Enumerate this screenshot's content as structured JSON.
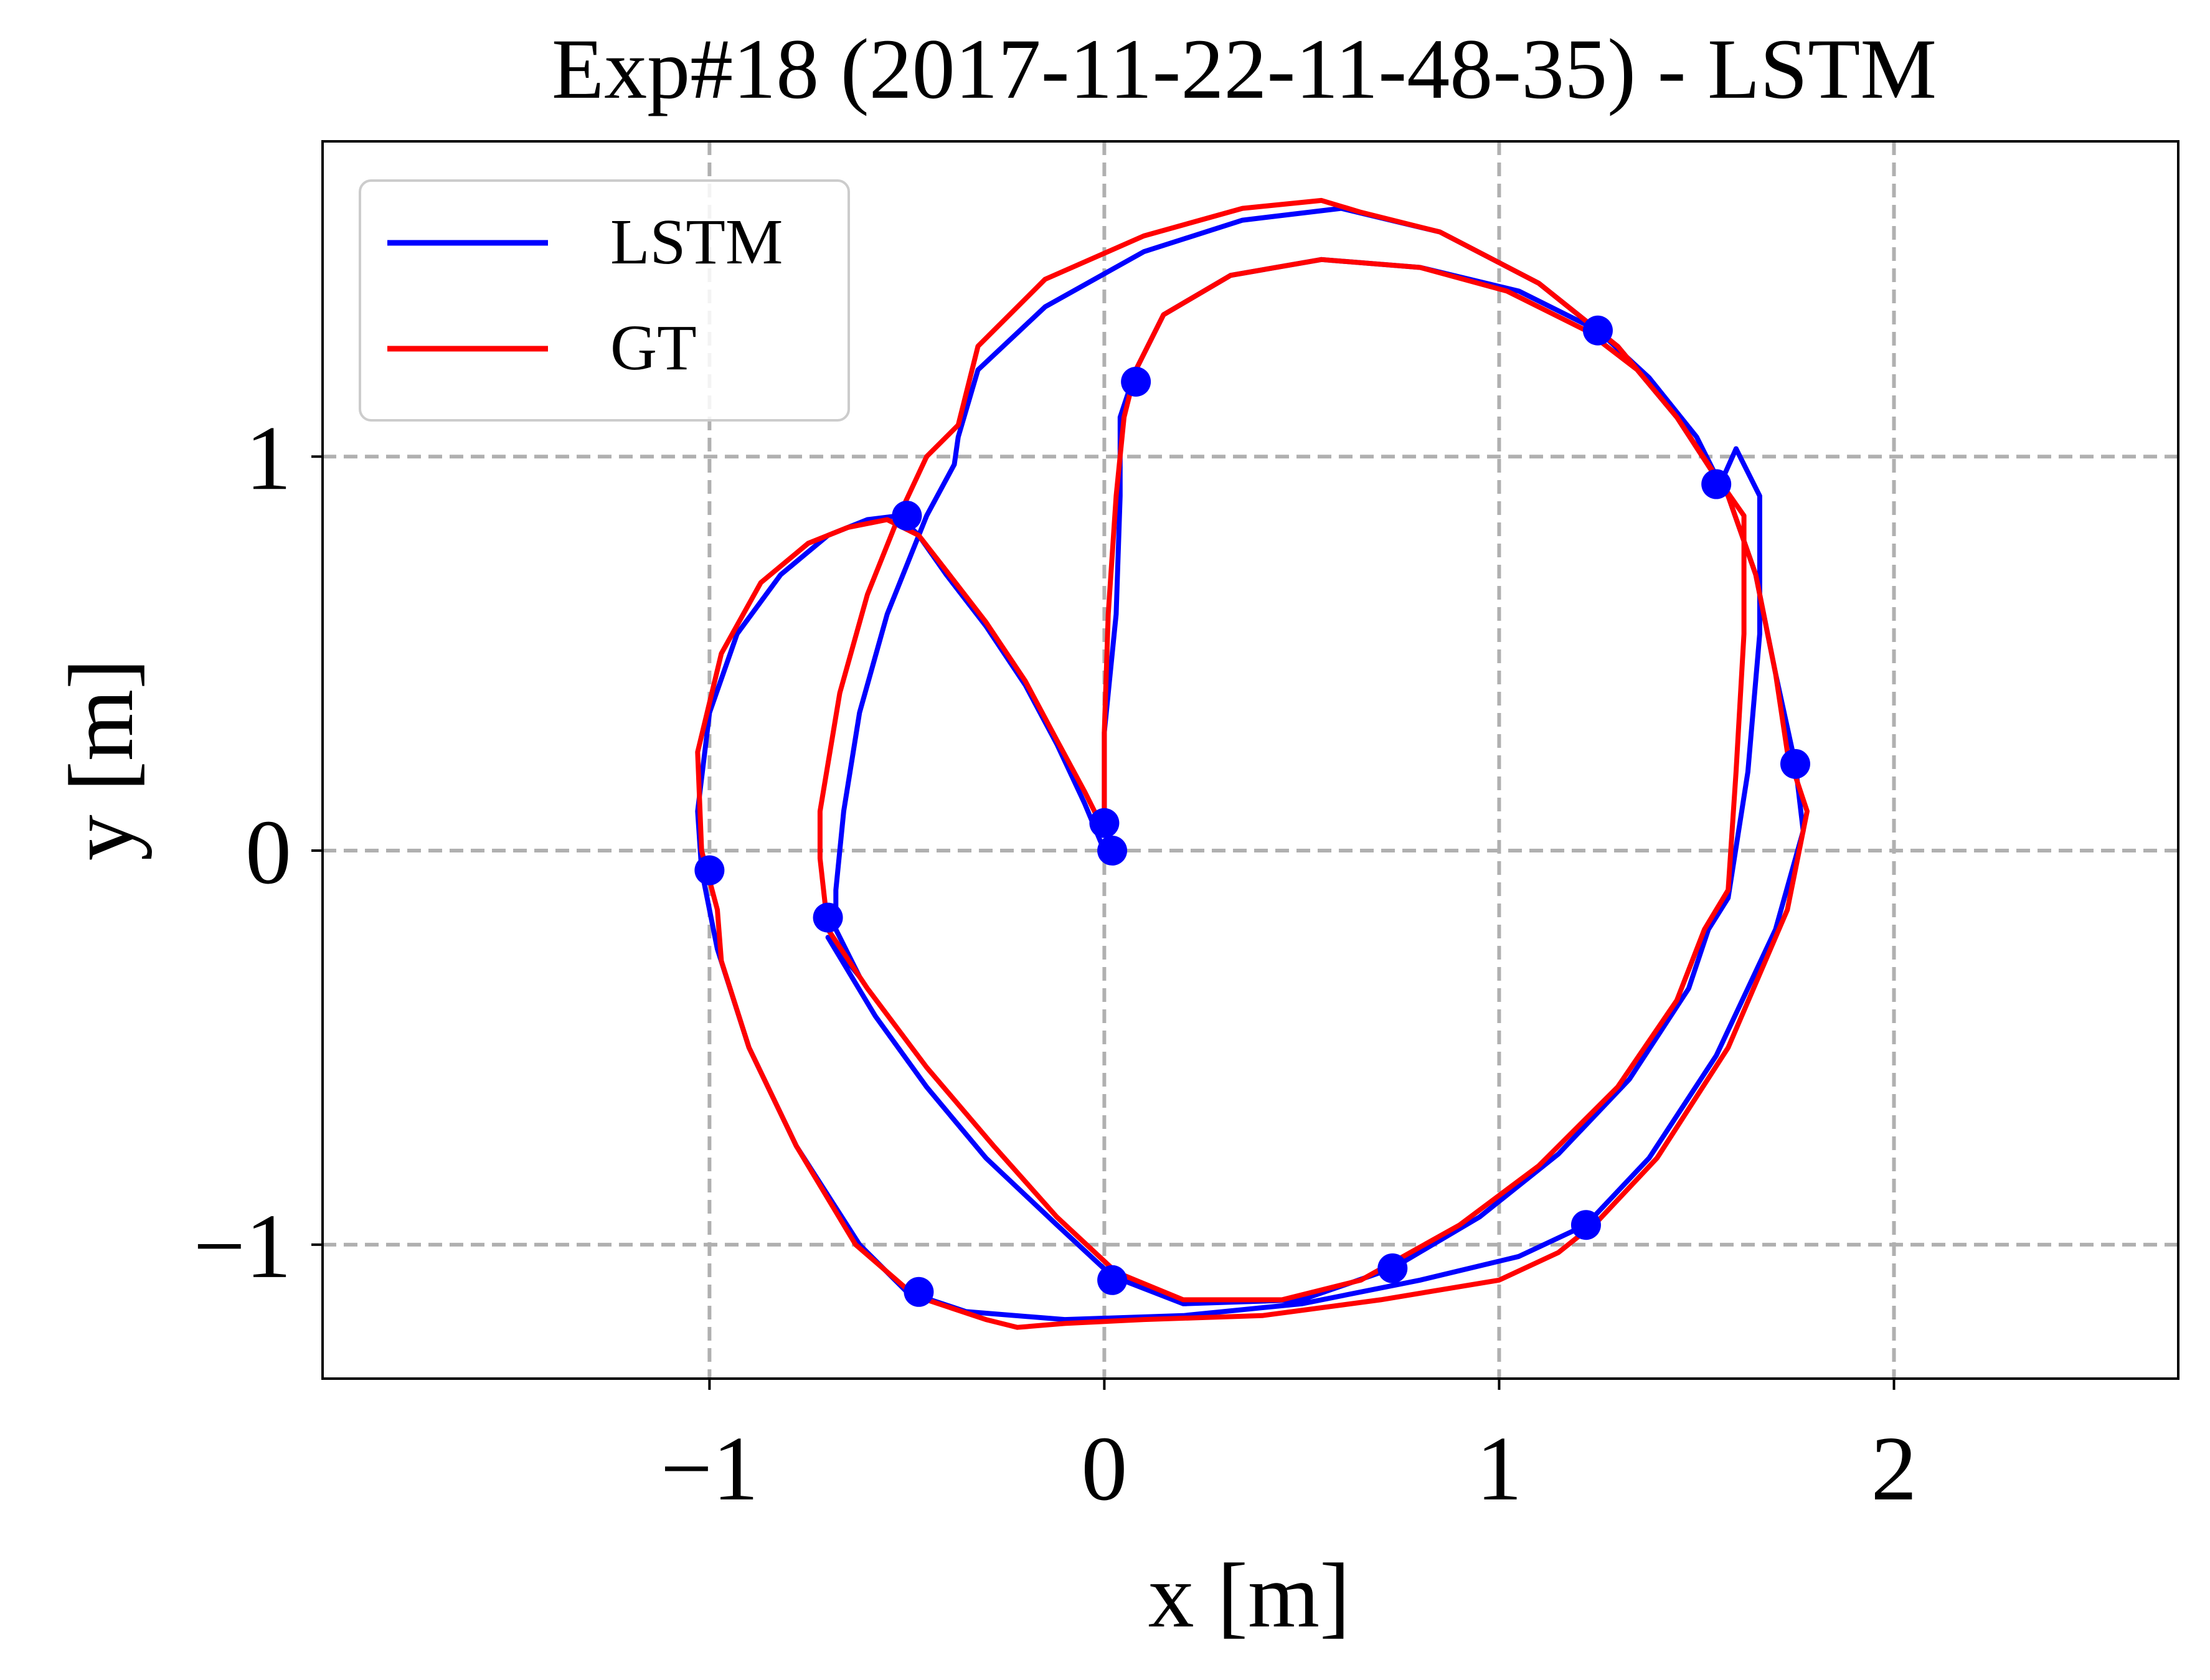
{
  "chart_data": {
    "type": "line",
    "title": "Exp#18 (2017-11-22-11-48-35) - LSTM",
    "xlabel": "x [m]",
    "ylabel": "y [m]",
    "xlim": [
      -1.98,
      2.72
    ],
    "ylim": [
      -1.34,
      1.8
    ],
    "xticks": [
      -1,
      0,
      1,
      2
    ],
    "yticks": [
      -1,
      0,
      1
    ],
    "xtick_labels": [
      "−1",
      "0",
      "1",
      "2"
    ],
    "ytick_labels": [
      "−1",
      "0",
      "1"
    ],
    "grid": true,
    "legend_position": "top-left",
    "series": [
      {
        "name": "LSTM",
        "color": "#0000ff",
        "points": [
          [
            0.0,
            0.0
          ],
          [
            -0.05,
            0.12
          ],
          [
            -0.12,
            0.27
          ],
          [
            -0.2,
            0.42
          ],
          [
            -0.3,
            0.57
          ],
          [
            -0.4,
            0.7
          ],
          [
            -0.47,
            0.8
          ],
          [
            -0.52,
            0.85
          ],
          [
            -0.6,
            0.84
          ],
          [
            -0.7,
            0.8
          ],
          [
            -0.82,
            0.7
          ],
          [
            -0.93,
            0.55
          ],
          [
            -1.0,
            0.35
          ],
          [
            -1.03,
            0.1
          ],
          [
            -1.02,
            -0.05
          ],
          [
            -0.98,
            -0.25
          ],
          [
            -0.9,
            -0.5
          ],
          [
            -0.78,
            -0.75
          ],
          [
            -0.62,
            -1.0
          ],
          [
            -0.5,
            -1.12
          ],
          [
            -0.35,
            -1.17
          ],
          [
            -0.1,
            -1.19
          ],
          [
            0.2,
            -1.18
          ],
          [
            0.5,
            -1.15
          ],
          [
            0.8,
            -1.09
          ],
          [
            1.05,
            -1.03
          ],
          [
            1.22,
            -0.95
          ],
          [
            1.38,
            -0.78
          ],
          [
            1.55,
            -0.52
          ],
          [
            1.7,
            -0.2
          ],
          [
            1.77,
            0.05
          ],
          [
            1.75,
            0.22
          ],
          [
            1.7,
            0.45
          ],
          [
            1.65,
            0.7
          ],
          [
            1.58,
            0.9
          ],
          [
            1.45,
            1.1
          ],
          [
            1.3,
            1.28
          ],
          [
            1.1,
            1.44
          ],
          [
            0.85,
            1.57
          ],
          [
            0.6,
            1.63
          ],
          [
            0.35,
            1.6
          ],
          [
            0.1,
            1.52
          ],
          [
            -0.15,
            1.38
          ],
          [
            -0.32,
            1.22
          ],
          [
            -0.37,
            1.05
          ],
          [
            -0.38,
            0.98
          ],
          [
            -0.45,
            0.85
          ],
          [
            -0.55,
            0.6
          ],
          [
            -0.62,
            0.35
          ],
          [
            -0.66,
            0.1
          ],
          [
            -0.68,
            -0.1
          ],
          [
            -0.68,
            -0.2
          ],
          [
            -0.62,
            -0.32
          ],
          [
            -0.7,
            -0.22
          ],
          [
            -0.58,
            -0.42
          ],
          [
            -0.45,
            -0.6
          ],
          [
            -0.3,
            -0.78
          ],
          [
            -0.12,
            -0.95
          ],
          [
            0.02,
            -1.08
          ],
          [
            0.2,
            -1.15
          ],
          [
            0.5,
            -1.14
          ],
          [
            0.73,
            -1.06
          ],
          [
            0.95,
            -0.93
          ],
          [
            1.15,
            -0.77
          ],
          [
            1.33,
            -0.58
          ],
          [
            1.48,
            -0.35
          ],
          [
            1.53,
            -0.2
          ],
          [
            1.58,
            -0.12
          ],
          [
            1.63,
            0.2
          ],
          [
            1.66,
            0.55
          ],
          [
            1.66,
            0.9
          ],
          [
            1.6,
            1.02
          ],
          [
            1.56,
            0.93
          ],
          [
            1.5,
            1.05
          ],
          [
            1.38,
            1.2
          ],
          [
            1.25,
            1.32
          ],
          [
            1.05,
            1.42
          ],
          [
            0.8,
            1.48
          ],
          [
            0.55,
            1.5
          ],
          [
            0.32,
            1.46
          ],
          [
            0.15,
            1.36
          ],
          [
            0.08,
            1.22
          ],
          [
            0.04,
            1.1
          ],
          [
            0.04,
            0.9
          ],
          [
            0.03,
            0.6
          ],
          [
            0.0,
            0.3
          ],
          [
            0.0,
            0.07
          ]
        ]
      },
      {
        "name": "GT",
        "color": "#ff0000",
        "points": [
          [
            0.0,
            0.05
          ],
          [
            -0.05,
            0.15
          ],
          [
            -0.12,
            0.28
          ],
          [
            -0.2,
            0.43
          ],
          [
            -0.3,
            0.58
          ],
          [
            -0.4,
            0.71
          ],
          [
            -0.47,
            0.8
          ],
          [
            -0.55,
            0.84
          ],
          [
            -0.65,
            0.82
          ],
          [
            -0.75,
            0.78
          ],
          [
            -0.87,
            0.68
          ],
          [
            -0.97,
            0.5
          ],
          [
            -1.03,
            0.25
          ],
          [
            -1.02,
            0.0
          ],
          [
            -0.98,
            -0.15
          ],
          [
            -0.97,
            -0.28
          ],
          [
            -0.9,
            -0.5
          ],
          [
            -0.78,
            -0.75
          ],
          [
            -0.63,
            -1.0
          ],
          [
            -0.48,
            -1.13
          ],
          [
            -0.3,
            -1.19
          ],
          [
            -0.22,
            -1.21
          ],
          [
            -0.1,
            -1.2
          ],
          [
            0.1,
            -1.19
          ],
          [
            0.4,
            -1.18
          ],
          [
            0.7,
            -1.14
          ],
          [
            1.0,
            -1.09
          ],
          [
            1.15,
            -1.02
          ],
          [
            1.25,
            -0.94
          ],
          [
            1.4,
            -0.78
          ],
          [
            1.58,
            -0.5
          ],
          [
            1.73,
            -0.15
          ],
          [
            1.78,
            0.1
          ],
          [
            1.73,
            0.25
          ],
          [
            1.7,
            0.45
          ],
          [
            1.65,
            0.7
          ],
          [
            1.58,
            0.9
          ],
          [
            1.45,
            1.1
          ],
          [
            1.3,
            1.28
          ],
          [
            1.1,
            1.44
          ],
          [
            0.85,
            1.57
          ],
          [
            0.65,
            1.62
          ],
          [
            0.55,
            1.65
          ],
          [
            0.35,
            1.63
          ],
          [
            0.1,
            1.56
          ],
          [
            -0.15,
            1.45
          ],
          [
            -0.32,
            1.28
          ],
          [
            -0.37,
            1.08
          ],
          [
            -0.45,
            1.0
          ],
          [
            -0.52,
            0.85
          ],
          [
            -0.6,
            0.65
          ],
          [
            -0.67,
            0.4
          ],
          [
            -0.72,
            0.1
          ],
          [
            -0.72,
            -0.02
          ],
          [
            -0.7,
            -0.2
          ],
          [
            -0.6,
            -0.35
          ],
          [
            -0.45,
            -0.55
          ],
          [
            -0.28,
            -0.75
          ],
          [
            -0.12,
            -0.93
          ],
          [
            0.03,
            -1.07
          ],
          [
            0.2,
            -1.14
          ],
          [
            0.45,
            -1.14
          ],
          [
            0.65,
            -1.09
          ],
          [
            0.9,
            -0.95
          ],
          [
            1.1,
            -0.8
          ],
          [
            1.3,
            -0.6
          ],
          [
            1.45,
            -0.38
          ],
          [
            1.52,
            -0.2
          ],
          [
            1.58,
            -0.1
          ],
          [
            1.6,
            0.2
          ],
          [
            1.62,
            0.55
          ],
          [
            1.62,
            0.85
          ],
          [
            1.55,
            0.95
          ],
          [
            1.45,
            1.1
          ],
          [
            1.35,
            1.22
          ],
          [
            1.22,
            1.32
          ],
          [
            1.02,
            1.42
          ],
          [
            0.8,
            1.48
          ],
          [
            0.55,
            1.5
          ],
          [
            0.32,
            1.46
          ],
          [
            0.15,
            1.36
          ],
          [
            0.08,
            1.22
          ],
          [
            0.05,
            1.1
          ],
          [
            0.03,
            0.9
          ],
          [
            0.01,
            0.6
          ],
          [
            0.0,
            0.3
          ],
          [
            0.0,
            0.05
          ]
        ]
      }
    ],
    "markers": {
      "color": "#0000ff",
      "points": [
        [
          -1.0,
          -0.05
        ],
        [
          -0.7,
          -0.17
        ],
        [
          -0.47,
          -1.12
        ],
        [
          0.02,
          -1.09
        ],
        [
          0.73,
          -1.06
        ],
        [
          1.22,
          -0.95
        ],
        [
          1.75,
          0.22
        ],
        [
          1.55,
          0.93
        ],
        [
          1.25,
          1.32
        ],
        [
          0.08,
          1.19
        ],
        [
          -0.5,
          0.85
        ],
        [
          0.0,
          0.07
        ],
        [
          0.02,
          0.0
        ]
      ]
    }
  }
}
